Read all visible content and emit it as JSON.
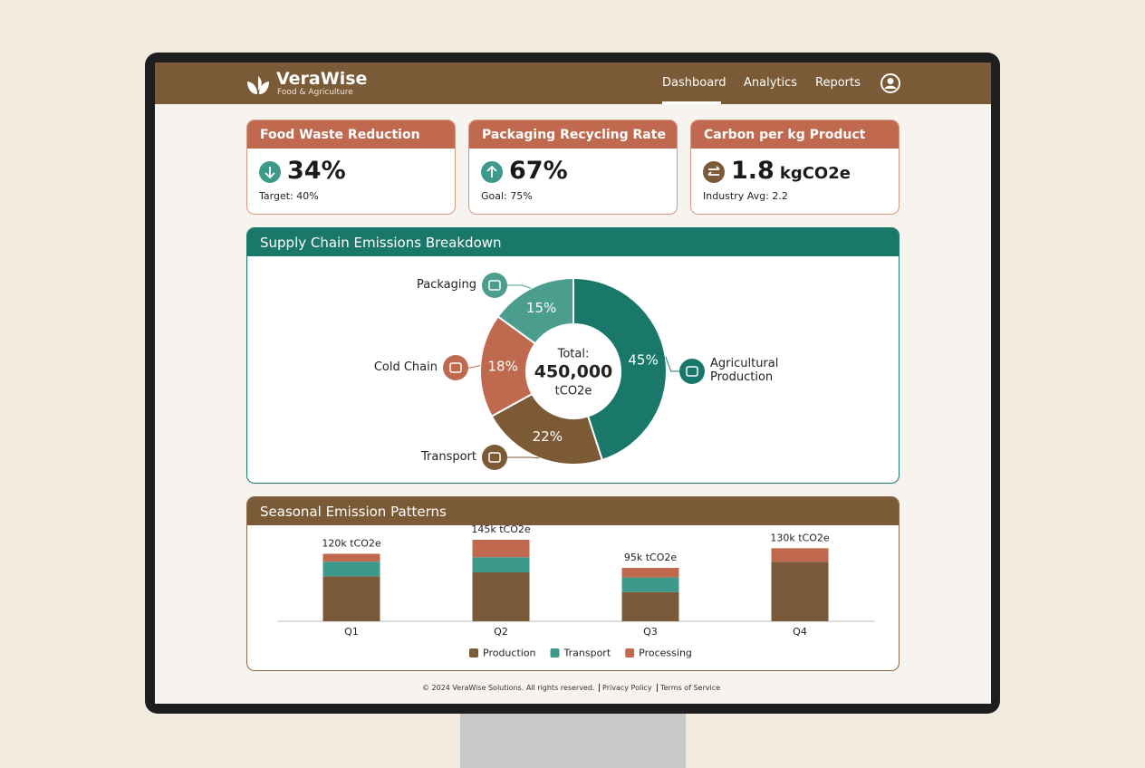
{
  "header": {
    "brand": "VeraWise",
    "tagline": "Food & Agriculture",
    "nav": [
      "Dashboard",
      "Analytics",
      "Reports"
    ]
  },
  "kpis": [
    {
      "title": "Food Waste Reduction",
      "value": "34%",
      "note": "Target: 40%"
    },
    {
      "title": "Packaging Recycling Rate",
      "value": "67%",
      "note": "Goal: 75%"
    },
    {
      "title": "Carbon per kg Product",
      "value": "1.8",
      "unit": "kgCO2e",
      "note": "Industry Avg: 2.2"
    }
  ],
  "chart_data": [
    {
      "type": "pie",
      "title": "Supply Chain Emissions Breakdown",
      "categories": [
        "Agricultural Production",
        "Transport",
        "Cold Chain",
        "Packaging"
      ],
      "values": [
        45,
        22,
        18,
        15
      ],
      "value_labels": [
        "45%",
        "22%",
        "18%",
        "15%"
      ],
      "colors": [
        "#1a786a",
        "#7c5a36",
        "#bf6a4e",
        "#4b9d8d"
      ],
      "center_text": [
        "Total:",
        "450,000",
        "tCO2e"
      ]
    },
    {
      "type": "stacked_bar",
      "title": "Seasonal Emission Patterns",
      "categories": [
        "Q1",
        "Q2",
        "Q3",
        "Q4"
      ],
      "series": [
        {
          "name": "Production",
          "color": "#7a5a38",
          "values": [
            80,
            87,
            52,
            106
          ]
        },
        {
          "name": "Transport",
          "color": "#3d9a8a",
          "values": [
            26,
            27,
            26,
            0
          ]
        },
        {
          "name": "Processing",
          "color": "#c0694e",
          "values": [
            14,
            31,
            17,
            24
          ]
        }
      ],
      "totals": [
        120,
        145,
        95,
        130
      ],
      "total_labels": [
        "120k tCO2e",
        "145k tCO2e",
        "95k tCO2e",
        "130k tCO2e"
      ]
    }
  ],
  "footer": {
    "copyright": "© 2024 VeraWise Solutions. All rights reserved.",
    "links": [
      "Privacy Policy",
      "Terms of Service"
    ]
  }
}
